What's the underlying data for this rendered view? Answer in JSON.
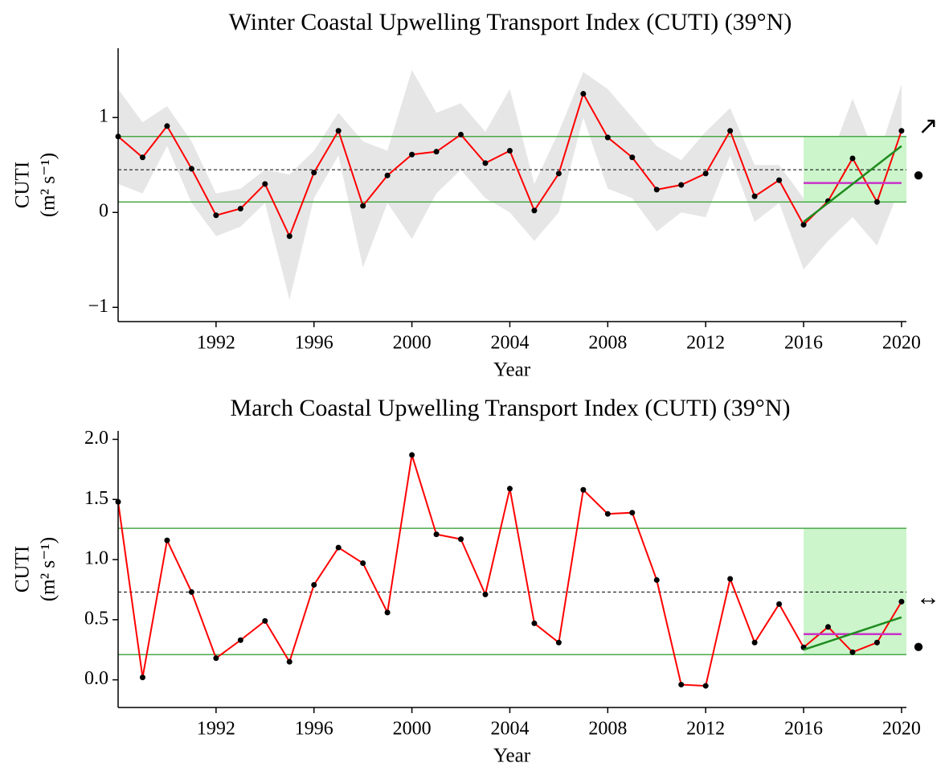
{
  "chart_data": [
    {
      "type": "line",
      "title": "Winter Coastal Upwelling Transport Index (CUTI)  (39°N)",
      "xlabel": "Year",
      "ylabel": [
        "CUTI",
        "(m² s⁻¹)"
      ],
      "x": [
        1988,
        1989,
        1990,
        1991,
        1992,
        1993,
        1994,
        1995,
        1996,
        1997,
        1998,
        1999,
        2000,
        2001,
        2002,
        2003,
        2004,
        2005,
        2006,
        2007,
        2008,
        2009,
        2010,
        2011,
        2012,
        2013,
        2014,
        2015,
        2016,
        2017,
        2018,
        2019,
        2020
      ],
      "values": [
        0.8,
        0.58,
        0.91,
        0.46,
        -0.03,
        0.04,
        0.3,
        -0.25,
        0.42,
        0.86,
        0.07,
        0.39,
        0.61,
        0.64,
        0.82,
        0.52,
        0.65,
        0.02,
        0.41,
        1.25,
        0.79,
        0.58,
        0.24,
        0.29,
        0.41,
        0.86,
        0.17,
        0.34,
        -0.13,
        0.12,
        0.57,
        0.11,
        0.86
      ],
      "color": "#ff0000",
      "band_upper": [
        1.3,
        0.95,
        1.12,
        0.75,
        0.2,
        0.25,
        0.45,
        0.4,
        0.65,
        1.05,
        0.75,
        0.65,
        1.5,
        1.05,
        1.15,
        0.85,
        1.3,
        0.3,
        0.85,
        1.48,
        1.3,
        1.0,
        0.7,
        0.55,
        0.85,
        1.1,
        0.5,
        0.5,
        0.15,
        0.5,
        1.2,
        0.55,
        1.35
      ],
      "band_lower": [
        0.3,
        0.2,
        0.7,
        0.1,
        -0.25,
        -0.15,
        0.1,
        -0.92,
        0.15,
        0.6,
        -0.58,
        0.1,
        -0.28,
        0.2,
        0.45,
        0.15,
        0.0,
        -0.3,
        0.0,
        1.0,
        0.25,
        0.15,
        -0.2,
        0.0,
        -0.05,
        0.6,
        -0.1,
        0.1,
        -0.6,
        -0.3,
        -0.05,
        -0.35,
        0.3
      ],
      "band_color": "#e6e6e6",
      "upper_line": 0.8,
      "lower_line": 0.11,
      "mean_line": 0.45,
      "recent_start": 2016,
      "recent_mean": 0.31,
      "trend": [
        -0.1,
        0.7
      ],
      "trend_symbol": "↗",
      "mean_symbol": "●",
      "xlim": [
        1988,
        2020.2
      ],
      "ylim": [
        -1.15,
        1.73
      ],
      "xticks": [
        1992,
        1996,
        2000,
        2004,
        2008,
        2012,
        2016,
        2020
      ],
      "yticks": [
        {
          "value": -1,
          "label": "−1"
        },
        0,
        1
      ]
    },
    {
      "type": "line",
      "title": "March Coastal Upwelling Transport Index (CUTI) (39°N)",
      "xlabel": "Year",
      "ylabel": [
        "CUTI",
        "(m² s⁻¹)"
      ],
      "x": [
        1988,
        1989,
        1990,
        1991,
        1992,
        1993,
        1994,
        1995,
        1996,
        1997,
        1998,
        1999,
        2000,
        2001,
        2002,
        2003,
        2004,
        2005,
        2006,
        2007,
        2008,
        2009,
        2010,
        2011,
        2012,
        2013,
        2014,
        2015,
        2016,
        2017,
        2018,
        2019,
        2020
      ],
      "values": [
        1.48,
        0.02,
        1.16,
        0.73,
        0.18,
        0.33,
        0.49,
        0.15,
        0.79,
        1.1,
        0.97,
        0.56,
        1.87,
        1.21,
        1.17,
        0.71,
        1.59,
        0.47,
        0.31,
        1.58,
        1.38,
        1.39,
        0.83,
        -0.04,
        -0.05,
        0.84,
        0.31,
        0.63,
        0.27,
        0.44,
        0.23,
        0.31,
        0.65
      ],
      "color": "#ff0000",
      "upper_line": 1.26,
      "lower_line": 0.21,
      "mean_line": 0.73,
      "recent_start": 2016,
      "recent_mean": 0.38,
      "trend": [
        0.25,
        0.52
      ],
      "trend_symbol": "↔",
      "mean_symbol": "●",
      "xlim": [
        1988,
        2020.2
      ],
      "ylim": [
        -0.23,
        2.07
      ],
      "xticks": [
        1992,
        1996,
        2000,
        2004,
        2008,
        2012,
        2016,
        2020
      ],
      "yticks": [
        {
          "value": 0,
          "label": "0.0"
        },
        0.5,
        {
          "value": 1,
          "label": "1.0"
        },
        1.5,
        {
          "value": 2,
          "label": "2.0"
        }
      ]
    }
  ]
}
